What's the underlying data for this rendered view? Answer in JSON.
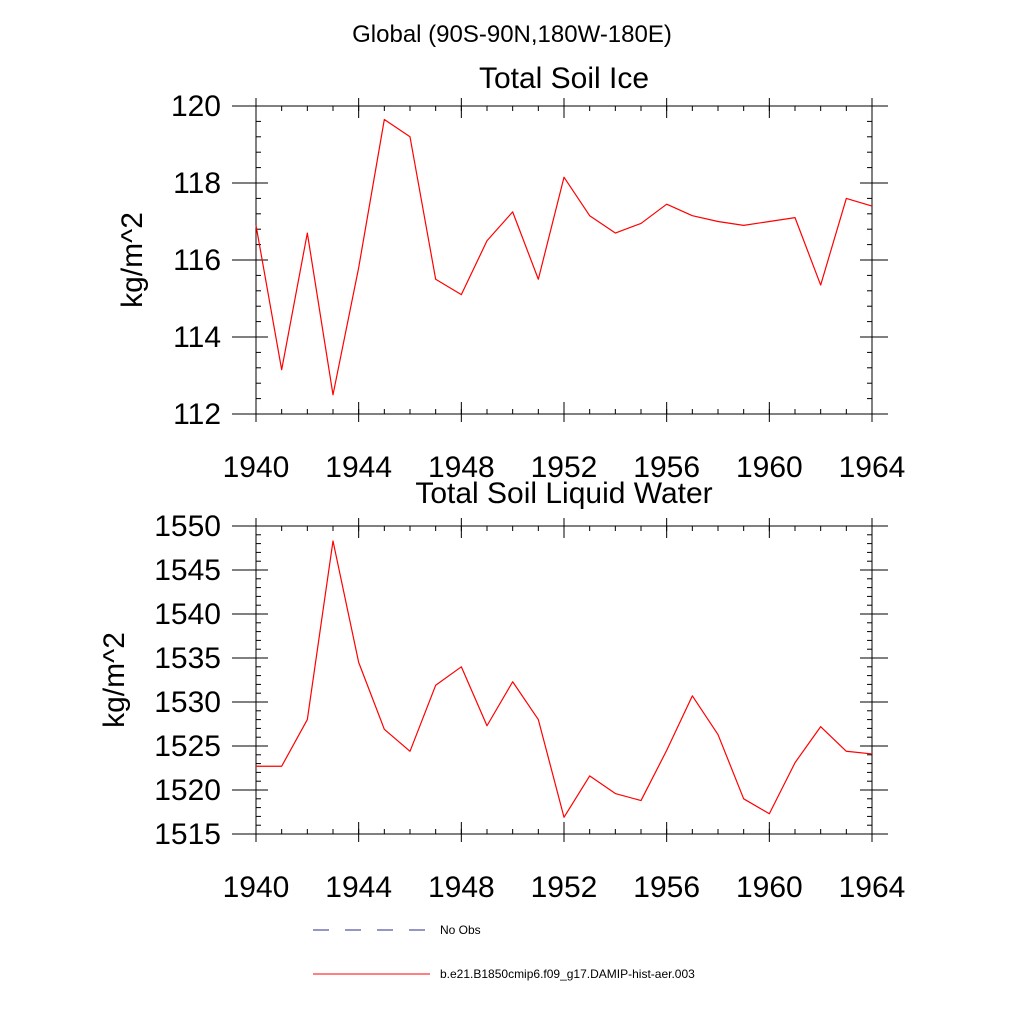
{
  "figure": {
    "suptitle": "Global (90S-90N,180W-180E)",
    "legend": [
      {
        "label": "No Obs",
        "color": "#2b2b8c",
        "style": "dashed"
      },
      {
        "label": "b.e21.B1850cmip6.f09_g17.DAMIP-hist-aer.003",
        "color": "#ff0000",
        "style": "solid"
      }
    ]
  },
  "chart_data": [
    {
      "type": "line",
      "title": "Total Soil Ice",
      "xlabel": "",
      "ylabel": "kg/m^2",
      "xlim": [
        1940,
        1964
      ],
      "ylim": [
        112,
        120
      ],
      "xticks": [
        1940,
        1944,
        1948,
        1952,
        1956,
        1960,
        1964
      ],
      "yticks": [
        112,
        114,
        116,
        118,
        120
      ],
      "grid": false,
      "x": [
        1940,
        1941,
        1942,
        1943,
        1944,
        1945,
        1946,
        1947,
        1948,
        1949,
        1950,
        1951,
        1952,
        1953,
        1954,
        1955,
        1956,
        1957,
        1958,
        1959,
        1960,
        1961,
        1962,
        1963,
        1964
      ],
      "series": [
        {
          "name": "b.e21.B1850cmip6.f09_g17.DAMIP-hist-aer.003",
          "color": "#ff0000",
          "values": [
            116.9,
            113.15,
            116.7,
            112.5,
            115.8,
            119.65,
            119.2,
            115.5,
            115.1,
            116.5,
            117.25,
            115.5,
            118.15,
            117.15,
            116.7,
            116.95,
            117.45,
            117.15,
            117.0,
            116.9,
            117.0,
            117.1,
            115.35,
            117.6,
            117.4
          ]
        }
      ]
    },
    {
      "type": "line",
      "title": "Total Soil Liquid Water",
      "xlabel": "",
      "ylabel": "kg/m^2",
      "xlim": [
        1940,
        1964
      ],
      "ylim": [
        1515,
        1550
      ],
      "xticks": [
        1940,
        1944,
        1948,
        1952,
        1956,
        1960,
        1964
      ],
      "yticks": [
        1515,
        1520,
        1525,
        1530,
        1535,
        1540,
        1545,
        1550
      ],
      "grid": false,
      "x": [
        1940,
        1941,
        1942,
        1943,
        1944,
        1945,
        1946,
        1947,
        1948,
        1949,
        1950,
        1951,
        1952,
        1953,
        1954,
        1955,
        1956,
        1957,
        1958,
        1959,
        1960,
        1961,
        1962,
        1963,
        1964
      ],
      "series": [
        {
          "name": "b.e21.B1850cmip6.f09_g17.DAMIP-hist-aer.003",
          "color": "#ff0000",
          "values": [
            1522.7,
            1522.7,
            1528.0,
            1548.3,
            1534.5,
            1526.9,
            1524.4,
            1531.9,
            1534.0,
            1527.3,
            1532.3,
            1528.0,
            1516.9,
            1521.6,
            1519.6,
            1518.8,
            1524.5,
            1530.7,
            1526.3,
            1519.0,
            1517.3,
            1523.1,
            1527.2,
            1524.4,
            1524.1
          ]
        }
      ]
    }
  ]
}
